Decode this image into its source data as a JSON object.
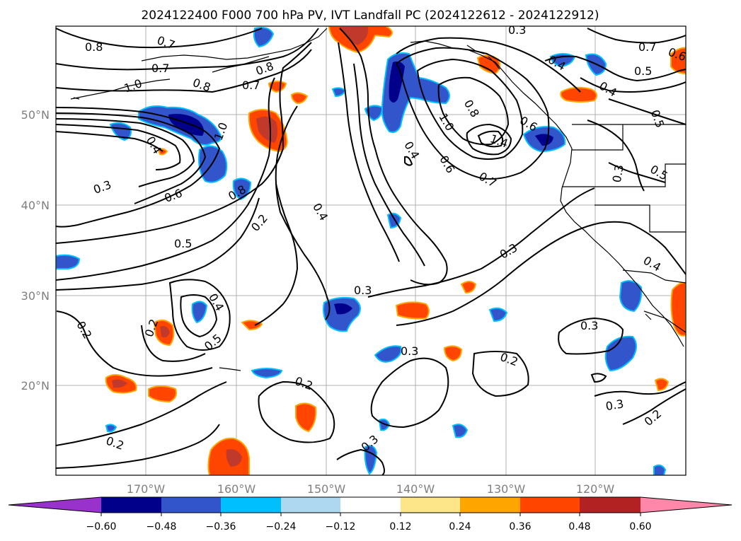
{
  "title": "2024122400 F000 700 hPa PV, IVT Landfall PC (2024122612 - 2024122912)",
  "map": {
    "lat_ticks": [
      "50°N",
      "40°N",
      "30°N",
      "20°N"
    ],
    "lon_ticks": [
      "170°W",
      "160°W",
      "150°W",
      "140°W",
      "130°W",
      "120°W"
    ],
    "contour_labels": [
      "0.8",
      "0.7",
      "0.7",
      "0.8",
      "0.7",
      "0.8",
      "1.0",
      "0.4",
      "1.0",
      "0.3",
      "0.6",
      "0.8",
      "0.5",
      "0.2",
      "0.4",
      "0.4",
      "0.5",
      "0.2",
      "0.2",
      "0.3",
      "0.2",
      "0.3",
      "0.2",
      "0.4",
      "0.6",
      "0.8",
      "1.0",
      "1.4",
      "0.6",
      "0.7",
      "0.3",
      "0.3",
      "0.3",
      "0.2",
      "0.3",
      "0.2",
      "0.4",
      "0.3",
      "0.5",
      "0.7",
      "0.6",
      "0.5",
      "0.4",
      "0.5",
      "0.4",
      "0.3"
    ]
  },
  "colorbar": {
    "ticks": [
      "−0.60",
      "−0.48",
      "−0.36",
      "−0.24",
      "−0.12",
      "0.12",
      "0.24",
      "0.36",
      "0.48",
      "0.60"
    ],
    "colors": [
      "#9932cc",
      "#00008b",
      "#3355cc",
      "#00bfff",
      "#add8f0",
      "#ffffff",
      "#fde68a",
      "#ffa500",
      "#ff4500",
      "#b22222",
      "#ff88aa"
    ]
  },
  "colors": {
    "pos_fill": "#ff4500",
    "pos_dark": "#c0392b",
    "pos_edge": "#ffa500",
    "neg_fill": "#3355cc",
    "neg_dark": "#00008b",
    "neg_edge": "#00bfff",
    "grid": "#b0b0b0",
    "contour": "#000000",
    "coast": "#000000"
  }
}
